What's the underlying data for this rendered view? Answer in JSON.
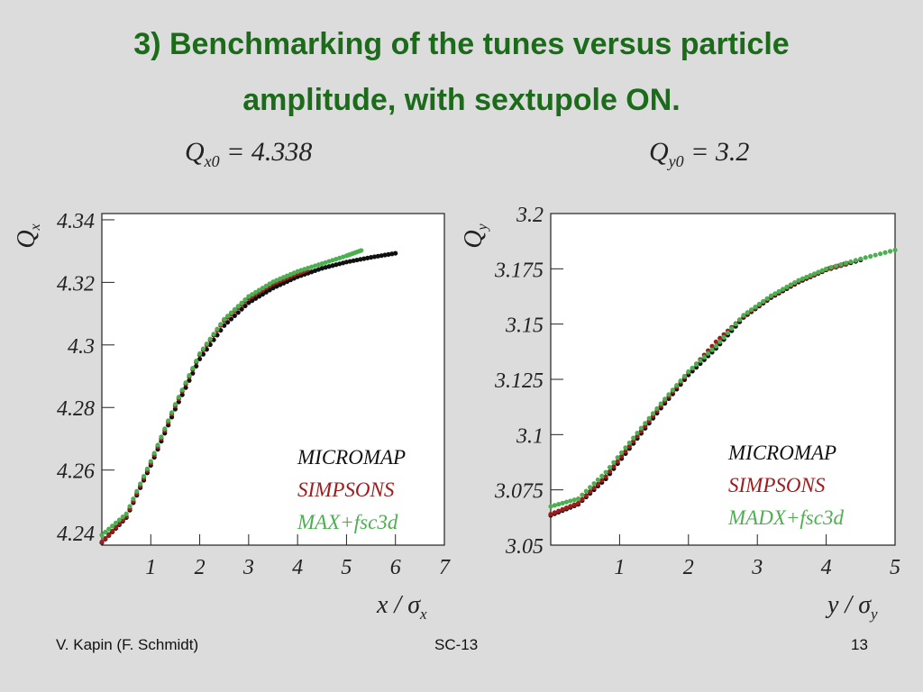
{
  "slide": {
    "title_line1": "3) Benchmarking of the tunes versus particle",
    "title_line2": "amplitude, with sextupole ON.",
    "footer_left": "V. Kapin (F. Schmidt)",
    "footer_center": "SC-13",
    "footer_right": "13"
  },
  "colors": {
    "title": "#1b6b1b",
    "micromap": "#111111",
    "simpsons": "#a01c1c",
    "madx": "#4caf50",
    "plot_bg": "#ffffff"
  },
  "chart_data": [
    {
      "type": "scatter",
      "header_main": "Q",
      "header_sub": "x0",
      "header_value": "= 4.338",
      "ylabel_main": "Q",
      "ylabel_sub": "x",
      "xlabel_main": "x / σ",
      "xlabel_sub": "x",
      "xlim": [
        0,
        7
      ],
      "ylim": [
        4.236,
        4.342
      ],
      "xticks": [
        1,
        2,
        3,
        4,
        5,
        6,
        7
      ],
      "xtick_labels": [
        "1",
        "2",
        "3",
        "4",
        "5",
        "6",
        "7"
      ],
      "yticks": [
        4.24,
        4.26,
        4.28,
        4.3,
        4.32,
        4.34
      ],
      "ytick_labels": [
        "4.24",
        "4.26",
        "4.28",
        "4.3",
        "4.32",
        "4.34"
      ],
      "legend": [
        {
          "label": "MICROMAP",
          "color": "#111111"
        },
        {
          "label": "SIMPSONS",
          "color": "#a01c1c"
        },
        {
          "label": "MAX+fsc3d",
          "color": "#4caf50"
        }
      ],
      "series": [
        {
          "name": "MICROMAP",
          "color": "#111111",
          "x": [
            0,
            0.5,
            1,
            1.5,
            2,
            2.5,
            3,
            3.5,
            4,
            4.5,
            5,
            5.5,
            6
          ],
          "y": [
            4.2368,
            4.2448,
            4.2615,
            4.2795,
            4.2955,
            4.3062,
            4.3135,
            4.3182,
            4.3218,
            4.3245,
            4.3265,
            4.328,
            4.3293
          ]
        },
        {
          "name": "SIMPSONS",
          "color": "#a01c1c",
          "x": [
            0,
            0.5,
            1,
            1.5,
            2,
            2.5,
            3,
            3.5,
            4,
            4.2
          ],
          "y": [
            4.237,
            4.2452,
            4.2622,
            4.2805,
            4.2968,
            4.3078,
            4.315,
            4.3195,
            4.3228,
            4.324
          ]
        },
        {
          "name": "MAX+fsc3d",
          "color": "#4caf50",
          "x": [
            0,
            0.5,
            1,
            1.5,
            2,
            2.5,
            3,
            3.5,
            4,
            4.5,
            5,
            5.3
          ],
          "y": [
            4.2392,
            4.246,
            4.2628,
            4.281,
            4.2972,
            4.3082,
            4.3155,
            4.3202,
            4.3235,
            4.326,
            4.3285,
            4.3302
          ]
        }
      ]
    },
    {
      "type": "scatter",
      "header_main": "Q",
      "header_sub": "y0",
      "header_value": "= 3.2",
      "ylabel_main": "Q",
      "ylabel_sub": "y",
      "xlabel_main": "y / σ",
      "xlabel_sub": "y",
      "xlim": [
        0,
        5
      ],
      "ylim": [
        3.05,
        3.2
      ],
      "xticks": [
        1,
        2,
        3,
        4,
        5
      ],
      "xtick_labels": [
        "1",
        "2",
        "3",
        "4",
        "5"
      ],
      "yticks": [
        3.05,
        3.075,
        3.1,
        3.125,
        3.15,
        3.175,
        3.2
      ],
      "ytick_labels": [
        "3.05",
        "3.075",
        "3.1",
        "3.125",
        "3.15",
        "3.175",
        "3.2"
      ],
      "legend": [
        {
          "label": "MICROMAP",
          "color": "#111111"
        },
        {
          "label": "SIMPSONS",
          "color": "#a01c1c"
        },
        {
          "label": "MADX+fsc3d",
          "color": "#4caf50"
        }
      ],
      "series": [
        {
          "name": "MICROMAP",
          "color": "#111111",
          "x": [
            0,
            0.4,
            0.8,
            1.2,
            1.6,
            2.0,
            2.4,
            2.8,
            3.2,
            3.6,
            4.0,
            4.5
          ],
          "y": [
            3.0635,
            3.0685,
            3.08,
            3.096,
            3.112,
            3.127,
            3.139,
            3.153,
            3.162,
            3.169,
            3.1745,
            3.179
          ]
        },
        {
          "name": "SIMPSONS",
          "color": "#a01c1c",
          "x": [
            0,
            0.4,
            0.8,
            1.2,
            1.6,
            2.0,
            2.4,
            2.8,
            3.2,
            3.6,
            4.0,
            4.3
          ],
          "y": [
            3.064,
            3.069,
            3.081,
            3.097,
            3.113,
            3.128,
            3.142,
            3.1535,
            3.1625,
            3.1695,
            3.1748,
            3.1775
          ]
        },
        {
          "name": "MADX+fsc3d",
          "color": "#4caf50",
          "x": [
            0,
            0.4,
            0.8,
            1.2,
            1.6,
            2.0,
            2.4,
            2.8,
            3.2,
            3.6,
            4.0,
            4.5,
            5.0
          ],
          "y": [
            3.0675,
            3.071,
            3.083,
            3.0985,
            3.114,
            3.1285,
            3.14,
            3.154,
            3.1628,
            3.1698,
            3.175,
            3.1795,
            3.1835
          ]
        }
      ]
    }
  ]
}
